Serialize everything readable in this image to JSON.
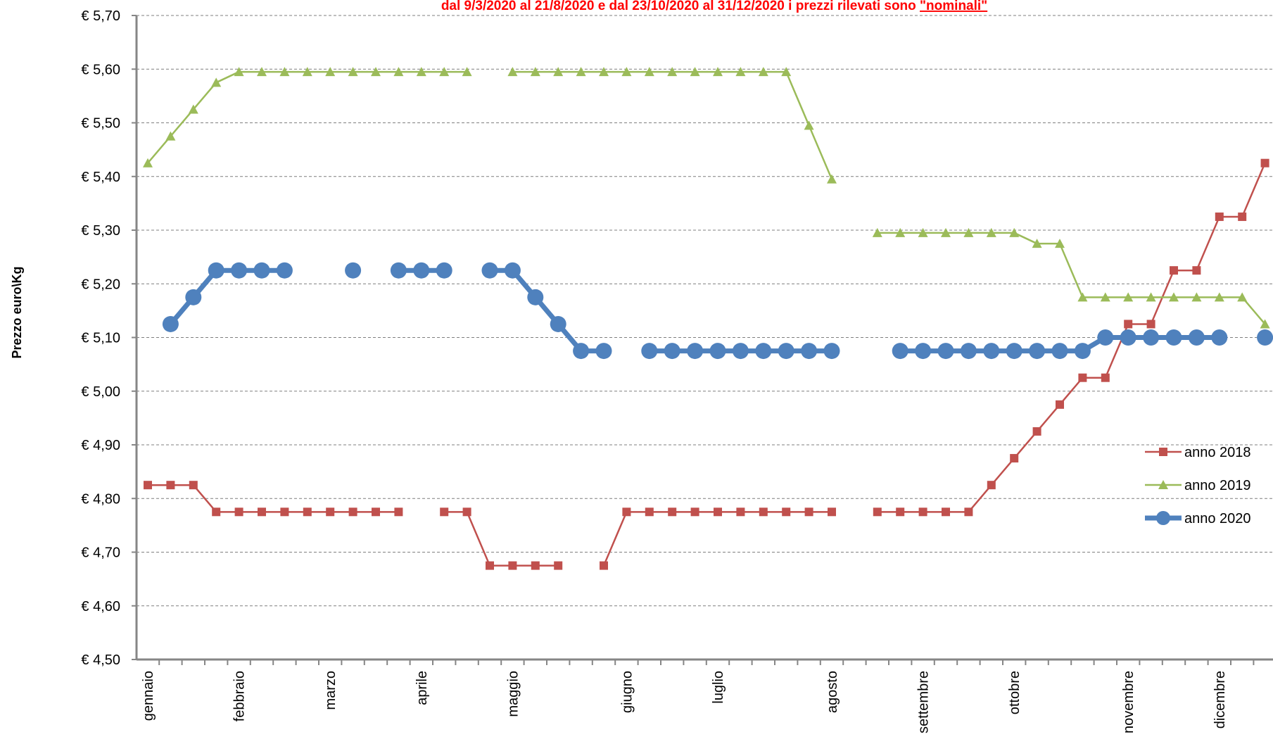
{
  "chart_data": {
    "type": "line",
    "subtitle": "dal 9/3/2020 al 21/8/2020  e dal 23/10/2020 al 31/12/2020 i prezzi rilevati sono ",
    "subtitle_emphasis": "\"nominali\"",
    "y_label": "Prezzo euro\\Kg",
    "categories": [
      "gennaio",
      null,
      null,
      null,
      "febbraio",
      null,
      null,
      null,
      "marzo",
      null,
      null,
      null,
      "aprile",
      null,
      null,
      null,
      "maggio",
      null,
      null,
      null,
      null,
      "giugno",
      null,
      null,
      null,
      "luglio",
      null,
      null,
      null,
      null,
      "agosto",
      null,
      null,
      null,
      "settembre",
      null,
      null,
      null,
      "ottobre",
      null,
      null,
      null,
      null,
      "novembre",
      null,
      null,
      null,
      "dicembre",
      null,
      null
    ],
    "ylim": [
      4.5,
      5.7
    ],
    "yticks": [
      {
        "value": 4.5,
        "label": "€ 4,50"
      },
      {
        "value": 4.6,
        "label": "€ 4,60"
      },
      {
        "value": 4.7,
        "label": "€ 4,70"
      },
      {
        "value": 4.8,
        "label": "€ 4,80"
      },
      {
        "value": 4.9,
        "label": "€ 4,90"
      },
      {
        "value": 5.0,
        "label": "€ 5,00"
      },
      {
        "value": 5.1,
        "label": "€ 5,10"
      },
      {
        "value": 5.2,
        "label": "€ 5,20"
      },
      {
        "value": 5.3,
        "label": "€ 5,30"
      },
      {
        "value": 5.4,
        "label": "€ 5,40"
      },
      {
        "value": 5.5,
        "label": "€ 5,50"
      },
      {
        "value": 5.6,
        "label": "€ 5,60"
      },
      {
        "value": 5.7,
        "label": "€ 5,70"
      }
    ],
    "grid": true,
    "legend": "right",
    "series": [
      {
        "name": "anno 2018",
        "color": "#c0504d",
        "marker": "square",
        "values": [
          4.825,
          4.825,
          4.825,
          4.775,
          4.775,
          4.775,
          4.775,
          4.775,
          4.775,
          4.775,
          4.775,
          4.775,
          null,
          4.775,
          4.775,
          4.675,
          4.675,
          4.675,
          4.675,
          null,
          4.675,
          4.775,
          4.775,
          4.775,
          4.775,
          4.775,
          4.775,
          4.775,
          4.775,
          4.775,
          4.775,
          null,
          4.775,
          4.775,
          4.775,
          4.775,
          4.775,
          4.825,
          4.875,
          4.925,
          4.975,
          5.025,
          5.025,
          5.125,
          5.125,
          5.225,
          5.225,
          5.325,
          5.325,
          5.425
        ]
      },
      {
        "name": "anno 2019",
        "color": "#9bbb59",
        "marker": "triangle",
        "values": [
          5.425,
          5.475,
          5.525,
          5.575,
          5.595,
          5.595,
          5.595,
          5.595,
          5.595,
          5.595,
          5.595,
          5.595,
          5.595,
          5.595,
          5.595,
          null,
          5.595,
          5.595,
          5.595,
          5.595,
          5.595,
          5.595,
          5.595,
          5.595,
          5.595,
          5.595,
          5.595,
          5.595,
          5.595,
          5.495,
          5.395,
          null,
          5.295,
          5.295,
          5.295,
          5.295,
          5.295,
          5.295,
          5.295,
          5.275,
          5.275,
          5.175,
          5.175,
          5.175,
          5.175,
          5.175,
          5.175,
          5.175,
          5.175,
          5.125
        ]
      },
      {
        "name": "anno 2020",
        "color": "#4f81bd",
        "marker": "circle",
        "values": [
          null,
          5.125,
          5.175,
          5.225,
          5.225,
          5.225,
          5.225,
          null,
          null,
          5.225,
          null,
          5.225,
          5.225,
          5.225,
          null,
          5.225,
          5.225,
          5.175,
          5.125,
          5.075,
          5.075,
          null,
          5.075,
          5.075,
          5.075,
          5.075,
          5.075,
          5.075,
          5.075,
          5.075,
          5.075,
          null,
          null,
          5.075,
          5.075,
          5.075,
          5.075,
          5.075,
          5.075,
          5.075,
          5.075,
          5.075,
          5.1,
          5.1,
          5.1,
          5.1,
          5.1,
          5.1,
          null,
          5.1
        ]
      }
    ]
  }
}
